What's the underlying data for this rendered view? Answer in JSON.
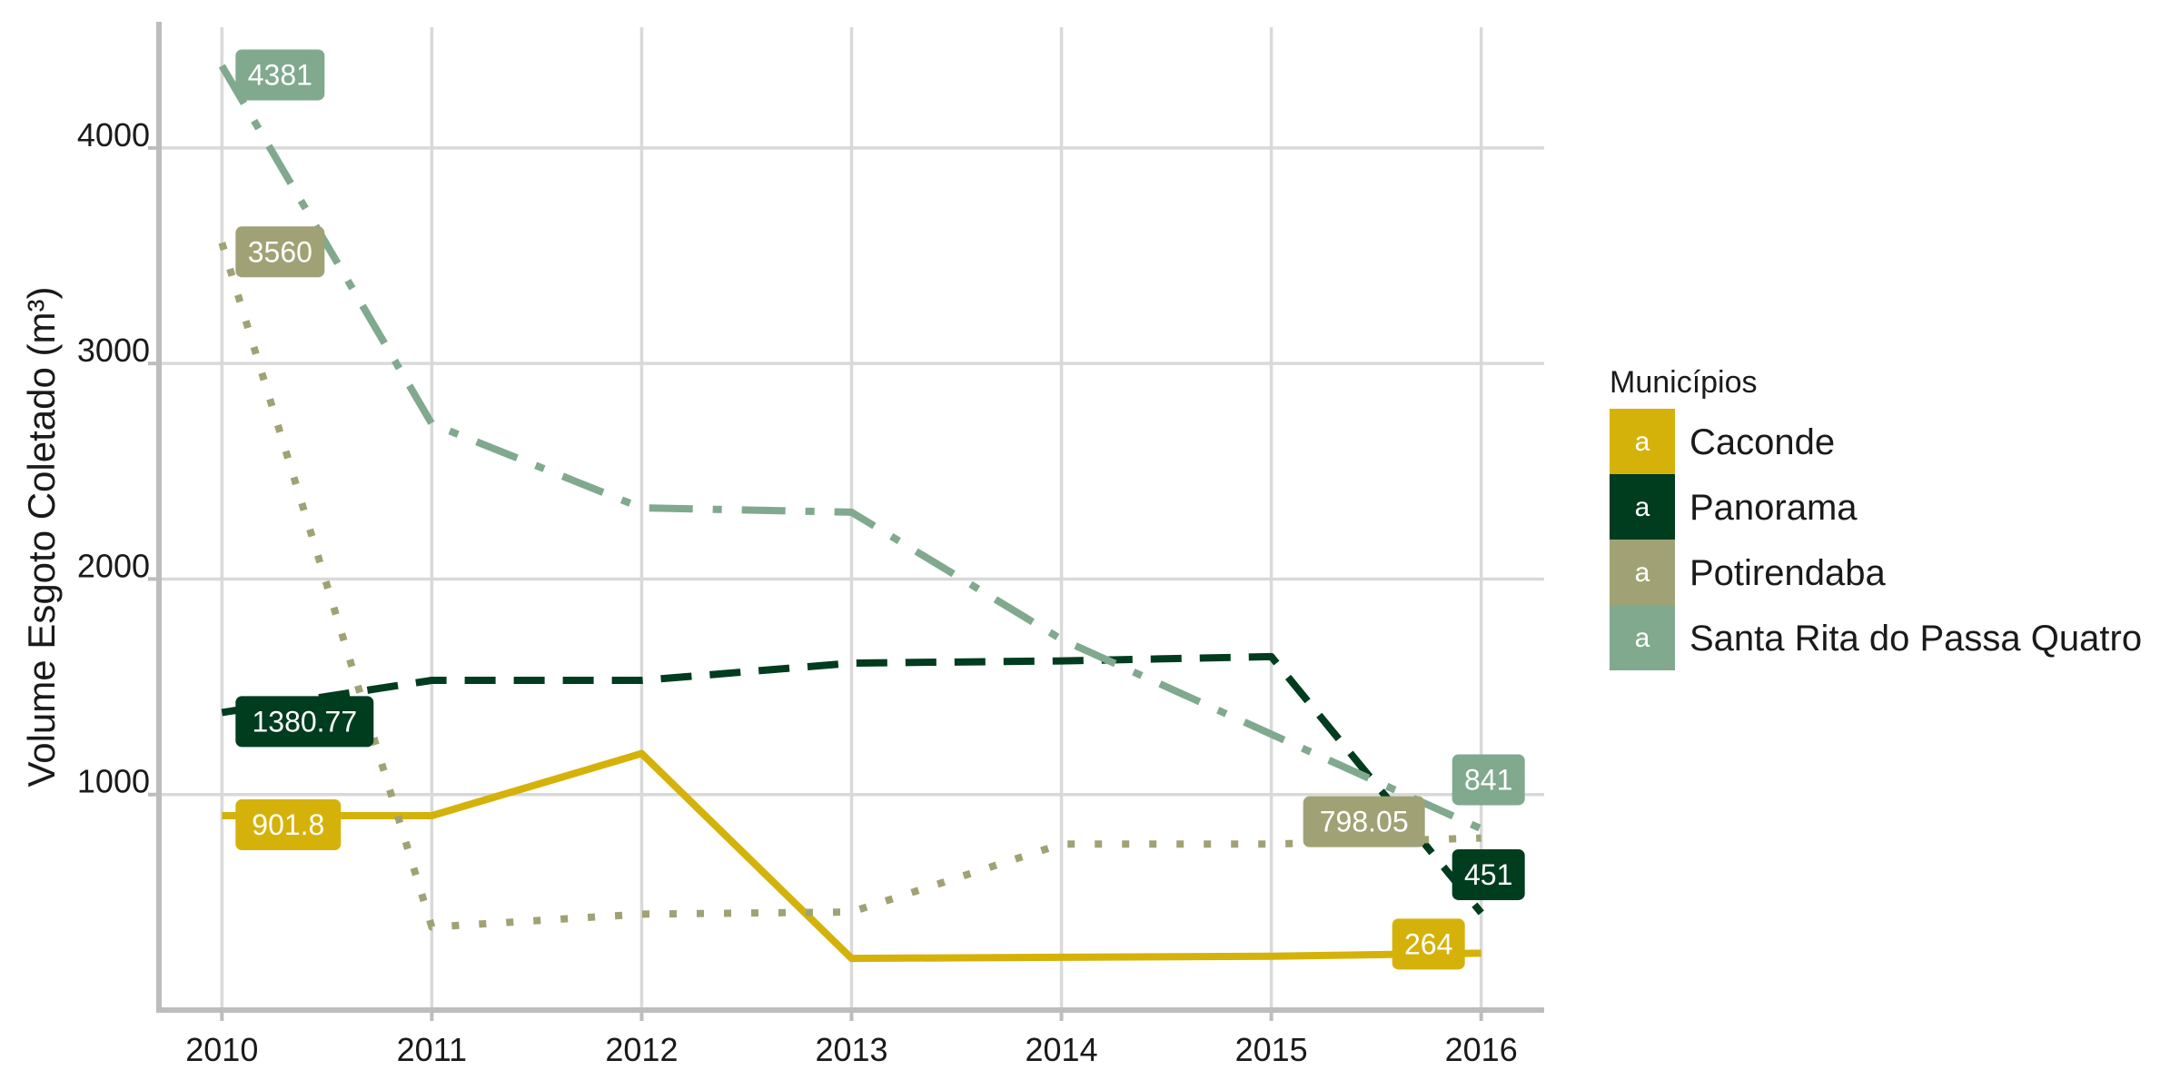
{
  "chart_data": {
    "type": "line",
    "title": "",
    "xlabel": "",
    "ylabel": "Volume Esgoto Coletado (m³)",
    "x": [
      2010,
      2011,
      2012,
      2013,
      2014,
      2015,
      2016
    ],
    "x_tick_labels": [
      "2010",
      "2011",
      "2012",
      "2013",
      "2014",
      "2015",
      "2016"
    ],
    "y_ticks": [
      1000,
      2000,
      3000,
      4000
    ],
    "y_tick_labels": [
      "1000",
      "2000",
      "3000",
      "4000"
    ],
    "xlim": [
      2009.7,
      2016.3
    ],
    "ylim": [
      0,
      4560
    ],
    "grid": true,
    "legend": {
      "title": "Municípios",
      "position": "right",
      "key_letter": "a"
    },
    "series": [
      {
        "name": "Caconde",
        "color": "#D4B20A",
        "dash": "solid",
        "values": [
          901.8,
          901.8,
          1190,
          240,
          245,
          250,
          264
        ],
        "labels": [
          {
            "index": 0,
            "text": "901.8"
          },
          {
            "index": 6,
            "text": "264"
          }
        ]
      },
      {
        "name": "Panorama",
        "color": "#003C1E",
        "dash": "dashed",
        "values": [
          1380.77,
          1530,
          1530,
          1610,
          1620,
          1640,
          451
        ],
        "labels": [
          {
            "index": 0,
            "text": "1380.77"
          },
          {
            "index": 6,
            "text": "451"
          }
        ]
      },
      {
        "name": "Potirendaba",
        "color": "#A0A275",
        "dash": "dotted",
        "values": [
          3560,
          385,
          445,
          455,
          770,
          770,
          798.05
        ],
        "labels": [
          {
            "index": 0,
            "text": "3560"
          },
          {
            "index": 6,
            "text": "798.05"
          }
        ]
      },
      {
        "name": "Santa Rita do Passa Quatro",
        "color": "#80A98E",
        "dash": "dotdash",
        "values": [
          4381,
          2720,
          2330,
          2310,
          1720,
          1280,
          841
        ],
        "labels": [
          {
            "index": 0,
            "text": "4381"
          },
          {
            "index": 6,
            "text": "841"
          }
        ]
      }
    ]
  }
}
